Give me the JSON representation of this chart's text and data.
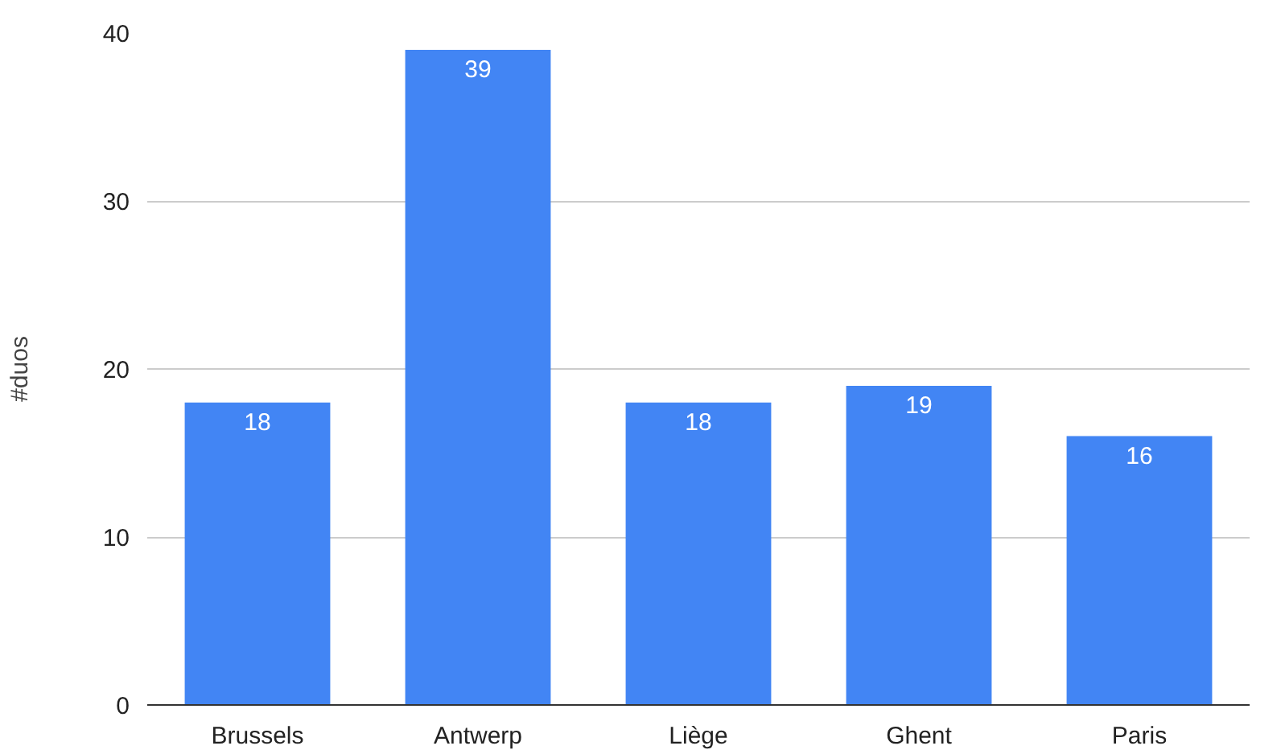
{
  "chart_data": {
    "type": "bar",
    "ylabel": "#duos",
    "categories": [
      "Brussels",
      "Antwerp",
      "Liège",
      "Ghent",
      "Paris"
    ],
    "values": [
      18,
      39,
      18,
      19,
      16
    ],
    "color": "#4285f4",
    "ylim": [
      0,
      40
    ],
    "yticks": [
      0,
      10,
      20,
      30,
      40
    ],
    "grid": "y",
    "data_labels": true
  }
}
